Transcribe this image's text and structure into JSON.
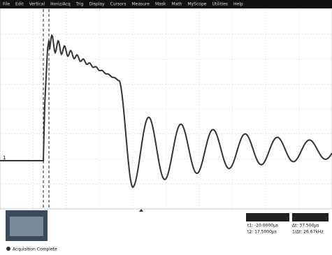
{
  "menu": [
    "File",
    "Edit",
    "Vertical",
    "Horiz/Acq",
    "Trig",
    "Display",
    "Cursors",
    "Measure",
    "Mask",
    "Math",
    "MyScope",
    "Utilities",
    "Help"
  ],
  "cursor_readout": {
    "t1": "t1: -20.0000µs",
    "dt": "Δt: 37.500µs",
    "t2": "t2: 17.5000µs",
    "inv_dt": "1/Δt: 26.67kHz"
  },
  "status": "Acquisition Complete"
}
